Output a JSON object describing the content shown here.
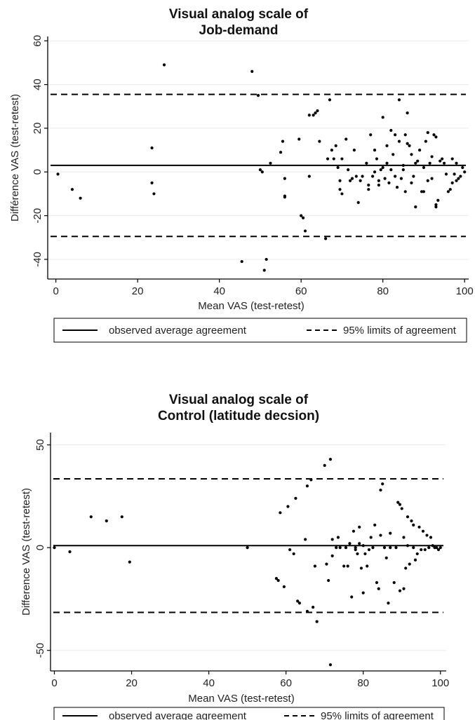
{
  "chart_data": [
    {
      "type": "scatter",
      "title": "Visual analog scale of\nJob-demand",
      "xlabel": "Mean VAS (test-retest)",
      "ylabel": "Différence VAS (test-retest)",
      "xlim": [
        -2,
        101
      ],
      "ylim": [
        -49,
        62
      ],
      "xticks": [
        0,
        20,
        40,
        60,
        80,
        100
      ],
      "yticks": [
        -40,
        -20,
        0,
        20,
        40,
        60
      ],
      "grid": true,
      "mean_diff": 3,
      "loa_upper": 35.5,
      "loa_lower": -29.5,
      "legend": [
        "observed average agreement",
        "95% limits of agreement"
      ],
      "points": [
        [
          0.5,
          -1
        ],
        [
          4,
          -8
        ],
        [
          6,
          -12
        ],
        [
          23.5,
          11
        ],
        [
          23.5,
          -5
        ],
        [
          24,
          -10
        ],
        [
          26.5,
          49
        ],
        [
          45.5,
          -41
        ],
        [
          48,
          46
        ],
        [
          49.5,
          35
        ],
        [
          50,
          1
        ],
        [
          50.5,
          0
        ],
        [
          51,
          -45
        ],
        [
          51.5,
          -40
        ],
        [
          52.5,
          4
        ],
        [
          55,
          9
        ],
        [
          55.5,
          14
        ],
        [
          56,
          -3
        ],
        [
          56,
          -11
        ],
        [
          56,
          -11.5
        ],
        [
          59.5,
          15
        ],
        [
          60,
          -20
        ],
        [
          60.5,
          -21
        ],
        [
          61,
          -27
        ],
        [
          62,
          26
        ],
        [
          62,
          -2
        ],
        [
          63,
          26
        ],
        [
          63.5,
          27
        ],
        [
          64,
          28
        ],
        [
          64.5,
          14
        ],
        [
          66,
          -30.5
        ],
        [
          66.5,
          6
        ],
        [
          67,
          33
        ],
        [
          67.5,
          10
        ],
        [
          68,
          6
        ],
        [
          68.5,
          12
        ],
        [
          69,
          2
        ],
        [
          69.5,
          -4
        ],
        [
          69.5,
          -8
        ],
        [
          70,
          -10
        ],
        [
          70,
          6
        ],
        [
          71,
          15
        ],
        [
          71.5,
          1
        ],
        [
          72,
          -4
        ],
        [
          72.5,
          -3
        ],
        [
          73,
          10
        ],
        [
          73.5,
          -2
        ],
        [
          74,
          -14
        ],
        [
          74.5,
          -4
        ],
        [
          75,
          -2
        ],
        [
          76,
          4
        ],
        [
          76.5,
          -6
        ],
        [
          76.5,
          -8
        ],
        [
          77,
          17
        ],
        [
          77.5,
          -2
        ],
        [
          78,
          0
        ],
        [
          78,
          10
        ],
        [
          78.5,
          6
        ],
        [
          79,
          -4
        ],
        [
          79,
          -6
        ],
        [
          79.5,
          1
        ],
        [
          80,
          25
        ],
        [
          80,
          2
        ],
        [
          80.5,
          -3
        ],
        [
          81,
          12
        ],
        [
          81,
          4
        ],
        [
          81.5,
          -5
        ],
        [
          82,
          19
        ],
        [
          82,
          1
        ],
        [
          82.5,
          8
        ],
        [
          83,
          -2
        ],
        [
          83,
          17
        ],
        [
          83.5,
          -7
        ],
        [
          84,
          33
        ],
        [
          84,
          14
        ],
        [
          84.5,
          -3
        ],
        [
          85,
          3
        ],
        [
          85,
          1
        ],
        [
          85.5,
          17
        ],
        [
          85.5,
          -9
        ],
        [
          86,
          27
        ],
        [
          86,
          13
        ],
        [
          86.5,
          12
        ],
        [
          87,
          8
        ],
        [
          87,
          -5
        ],
        [
          87.5,
          -2
        ],
        [
          88,
          -16
        ],
        [
          88,
          4
        ],
        [
          88.5,
          5
        ],
        [
          89,
          10
        ],
        [
          89.5,
          -9
        ],
        [
          90,
          -9
        ],
        [
          90,
          2
        ],
        [
          90.5,
          14
        ],
        [
          91,
          -4
        ],
        [
          91,
          18
        ],
        [
          91.5,
          4
        ],
        [
          92,
          -3
        ],
        [
          92,
          7
        ],
        [
          92.5,
          17
        ],
        [
          93,
          16
        ],
        [
          93,
          -16
        ],
        [
          93,
          -15
        ],
        [
          93.5,
          -13
        ],
        [
          94,
          5
        ],
        [
          94.5,
          6
        ],
        [
          95,
          4
        ],
        [
          95.5,
          -1
        ],
        [
          96,
          -9
        ],
        [
          96.5,
          -8
        ],
        [
          97,
          -5
        ],
        [
          97,
          6
        ],
        [
          97.5,
          -1
        ],
        [
          98,
          -4
        ],
        [
          98,
          4
        ],
        [
          98.5,
          -3
        ],
        [
          99,
          -2
        ],
        [
          99.5,
          2
        ],
        [
          100,
          0
        ]
      ]
    },
    {
      "type": "scatter",
      "title": "Visual analog scale of\nControl (latitude decsion)",
      "xlabel": "Mean VAS (test-retest)",
      "ylabel": "Difference VAS  (test-retest)",
      "xlim": [
        -1,
        101.5
      ],
      "ylim": [
        -60,
        56
      ],
      "xticks": [
        0,
        20,
        40,
        60,
        80,
        100
      ],
      "yticks": [
        -50,
        0,
        50
      ],
      "grid": true,
      "mean_diff": 1,
      "loa_upper": 33.5,
      "loa_lower": -31.5,
      "legend": [
        "observed average agreement",
        "95% limits of agreement"
      ],
      "points": [
        [
          0,
          0
        ],
        [
          4,
          -2
        ],
        [
          9.5,
          15
        ],
        [
          13.5,
          13
        ],
        [
          17.5,
          15
        ],
        [
          19.5,
          -7
        ],
        [
          50,
          0
        ],
        [
          57.5,
          -15
        ],
        [
          58,
          -16
        ],
        [
          58.5,
          17
        ],
        [
          59.5,
          -19
        ],
        [
          60.5,
          20
        ],
        [
          61,
          -1
        ],
        [
          62,
          -3
        ],
        [
          62.5,
          24
        ],
        [
          63,
          -26
        ],
        [
          63.5,
          -27
        ],
        [
          65,
          4
        ],
        [
          65.5,
          30
        ],
        [
          65.5,
          -31
        ],
        [
          66.5,
          33
        ],
        [
          67,
          -29
        ],
        [
          67.5,
          -9
        ],
        [
          68,
          -36
        ],
        [
          70,
          40
        ],
        [
          70.5,
          -8
        ],
        [
          71,
          -16
        ],
        [
          71.5,
          43
        ],
        [
          71.5,
          -57
        ],
        [
          72,
          -4
        ],
        [
          72,
          4
        ],
        [
          73,
          0
        ],
        [
          73.5,
          5
        ],
        [
          74,
          0
        ],
        [
          75,
          -9
        ],
        [
          75.5,
          0
        ],
        [
          76,
          -9
        ],
        [
          76.5,
          2
        ],
        [
          77,
          -24
        ],
        [
          77.5,
          8
        ],
        [
          78,
          -1
        ],
        [
          78,
          0
        ],
        [
          78.5,
          -3
        ],
        [
          79,
          2
        ],
        [
          79,
          10
        ],
        [
          79.5,
          -10
        ],
        [
          80,
          -22
        ],
        [
          80,
          1
        ],
        [
          80.5,
          -3
        ],
        [
          81,
          -9
        ],
        [
          81.5,
          -1
        ],
        [
          82,
          5
        ],
        [
          82.5,
          0
        ],
        [
          83,
          11
        ],
        [
          83.5,
          -17
        ],
        [
          84,
          -20
        ],
        [
          84.5,
          28
        ],
        [
          84.5,
          6
        ],
        [
          85,
          31
        ],
        [
          85.5,
          0
        ],
        [
          86,
          -5
        ],
        [
          86.5,
          -27
        ],
        [
          87,
          0
        ],
        [
          87,
          7
        ],
        [
          88,
          -17
        ],
        [
          88.5,
          0
        ],
        [
          89,
          22
        ],
        [
          89.5,
          -21
        ],
        [
          89.5,
          21
        ],
        [
          90,
          19
        ],
        [
          90.5,
          -20
        ],
        [
          90.5,
          5
        ],
        [
          91,
          -10
        ],
        [
          91.5,
          15
        ],
        [
          91.5,
          1
        ],
        [
          92,
          -8
        ],
        [
          92.5,
          13
        ],
        [
          93,
          0
        ],
        [
          93,
          11
        ],
        [
          93.5,
          -6
        ],
        [
          94,
          -3
        ],
        [
          94.5,
          10
        ],
        [
          95,
          -1
        ],
        [
          95.5,
          8
        ],
        [
          96,
          -1
        ],
        [
          96.5,
          6
        ],
        [
          97,
          0
        ],
        [
          97.5,
          5
        ],
        [
          98,
          1
        ],
        [
          98.5,
          0
        ],
        [
          99,
          0
        ],
        [
          99.5,
          -1
        ],
        [
          100,
          0
        ]
      ]
    }
  ]
}
